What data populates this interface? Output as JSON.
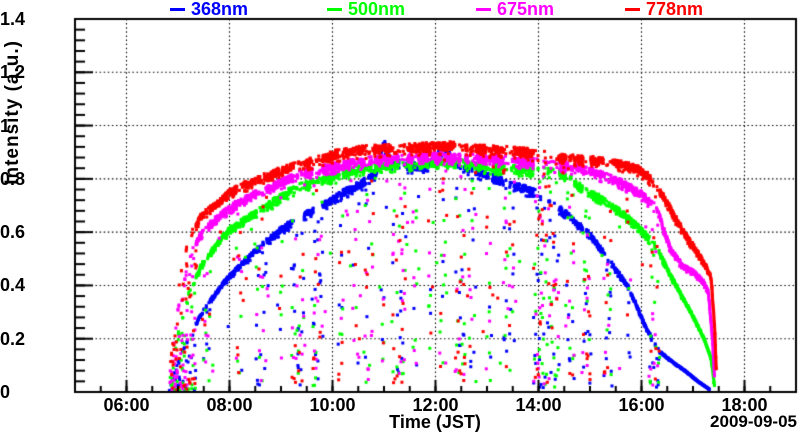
{
  "figure": {
    "background_color": "#ffffff",
    "axis_color": "#000000",
    "date_shown": "2009-09-05"
  },
  "chart_data": {
    "type": "scatter",
    "title": "",
    "xlabel": "Time (JST)",
    "ylabel": "Intensity (a.u.)",
    "date": "2009-09-05",
    "legend_position": "top",
    "grid": "dotted-at-major-ticks",
    "marker": "square",
    "marker_size_px": 3,
    "x_axis": {
      "unit": "hour-of-day JST",
      "range": [
        5,
        19
      ],
      "major_ticks": [
        {
          "hour": 6,
          "label": "06:00"
        },
        {
          "hour": 8,
          "label": "08:00"
        },
        {
          "hour": 10,
          "label": "10:00"
        },
        {
          "hour": 12,
          "label": "12:00"
        },
        {
          "hour": 14,
          "label": "14:00"
        },
        {
          "hour": 16,
          "label": "16:00"
        },
        {
          "hour": 18,
          "label": "18:00"
        }
      ],
      "minor_tick_step_hours": 0.5
    },
    "y_axis": {
      "range": [
        0,
        1.4
      ],
      "major_ticks": [
        {
          "value": 0.0,
          "label": "0"
        },
        {
          "value": 0.2,
          "label": "0.2"
        },
        {
          "value": 0.4,
          "label": "0.4"
        },
        {
          "value": 0.6,
          "label": "0.6"
        },
        {
          "value": 0.8,
          "label": "0.8"
        },
        {
          "value": 1.0,
          "label": "1"
        },
        {
          "value": 1.2,
          "label": "1.2"
        },
        {
          "value": 1.4,
          "label": "1.4"
        }
      ],
      "minor_tick_step": 0.04
    },
    "series": [
      {
        "name": "368nm",
        "color": "#0000ff",
        "start_hour": 6.85,
        "end_hour": 17.32,
        "envelope": [
          [
            6.85,
            0.03
          ],
          [
            7.0,
            0.12
          ],
          [
            7.2,
            0.2
          ],
          [
            7.4,
            0.28
          ],
          [
            7.6,
            0.34
          ],
          [
            7.9,
            0.42
          ],
          [
            8.2,
            0.48
          ],
          [
            8.6,
            0.555
          ],
          [
            9.0,
            0.62
          ],
          [
            9.4,
            0.67
          ],
          [
            9.8,
            0.71
          ],
          [
            10.2,
            0.76
          ],
          [
            10.6,
            0.8
          ],
          [
            10.85,
            0.84
          ],
          [
            11.0,
            0.95
          ],
          [
            11.15,
            0.88
          ],
          [
            11.5,
            0.86
          ],
          [
            11.8,
            0.865
          ],
          [
            12.05,
            0.9
          ],
          [
            12.15,
            0.94
          ],
          [
            12.35,
            0.88
          ],
          [
            12.7,
            0.85
          ],
          [
            13.1,
            0.82
          ],
          [
            13.5,
            0.79
          ],
          [
            13.9,
            0.765
          ],
          [
            14.2,
            0.73
          ],
          [
            14.6,
            0.67
          ],
          [
            15.0,
            0.6
          ],
          [
            15.35,
            0.51
          ],
          [
            15.75,
            0.4
          ],
          [
            16.1,
            0.24
          ],
          [
            16.35,
            0.155
          ],
          [
            16.6,
            0.115
          ],
          [
            16.85,
            0.08
          ],
          [
            17.1,
            0.04
          ],
          [
            17.32,
            0.01
          ]
        ]
      },
      {
        "name": "500nm",
        "color": "#00ff00",
        "start_hour": 6.85,
        "end_hour": 17.42,
        "envelope": [
          [
            6.85,
            0.05
          ],
          [
            7.0,
            0.22
          ],
          [
            7.2,
            0.37
          ],
          [
            7.45,
            0.48
          ],
          [
            7.7,
            0.55
          ],
          [
            8.0,
            0.62
          ],
          [
            8.4,
            0.67
          ],
          [
            8.8,
            0.72
          ],
          [
            9.2,
            0.77
          ],
          [
            9.6,
            0.8
          ],
          [
            10.0,
            0.82
          ],
          [
            10.5,
            0.85
          ],
          [
            11.0,
            0.865
          ],
          [
            11.6,
            0.87
          ],
          [
            12.2,
            0.88
          ],
          [
            12.8,
            0.865
          ],
          [
            13.3,
            0.855
          ],
          [
            13.8,
            0.85
          ],
          [
            14.2,
            0.845
          ],
          [
            14.5,
            0.83
          ],
          [
            14.9,
            0.77
          ],
          [
            15.3,
            0.73
          ],
          [
            15.7,
            0.67
          ],
          [
            16.0,
            0.62
          ],
          [
            16.3,
            0.55
          ],
          [
            16.55,
            0.45
          ],
          [
            16.8,
            0.36
          ],
          [
            17.0,
            0.29
          ],
          [
            17.2,
            0.21
          ],
          [
            17.35,
            0.13
          ],
          [
            17.42,
            0.02
          ]
        ]
      },
      {
        "name": "675nm",
        "color": "#ff00ff",
        "start_hour": 6.85,
        "end_hour": 17.42,
        "envelope": [
          [
            6.85,
            0.08
          ],
          [
            7.0,
            0.32
          ],
          [
            7.15,
            0.45
          ],
          [
            7.3,
            0.55
          ],
          [
            7.5,
            0.62
          ],
          [
            7.8,
            0.67
          ],
          [
            8.1,
            0.715
          ],
          [
            8.6,
            0.765
          ],
          [
            9.0,
            0.8
          ],
          [
            9.4,
            0.835
          ],
          [
            9.9,
            0.855
          ],
          [
            10.4,
            0.875
          ],
          [
            11.0,
            0.89
          ],
          [
            11.8,
            0.9
          ],
          [
            12.5,
            0.895
          ],
          [
            13.2,
            0.89
          ],
          [
            13.8,
            0.88
          ],
          [
            14.3,
            0.87
          ],
          [
            14.8,
            0.855
          ],
          [
            15.3,
            0.825
          ],
          [
            15.7,
            0.79
          ],
          [
            16.0,
            0.755
          ],
          [
            16.3,
            0.7
          ],
          [
            16.55,
            0.55
          ],
          [
            16.8,
            0.48
          ],
          [
            17.0,
            0.46
          ],
          [
            17.2,
            0.42
          ],
          [
            17.3,
            0.38
          ],
          [
            17.38,
            0.2
          ],
          [
            17.42,
            0.05
          ]
        ]
      },
      {
        "name": "778nm",
        "color": "#ff0000",
        "start_hour": 6.85,
        "end_hour": 17.45,
        "envelope": [
          [
            6.85,
            0.1
          ],
          [
            7.0,
            0.38
          ],
          [
            7.1,
            0.5
          ],
          [
            7.25,
            0.6
          ],
          [
            7.45,
            0.67
          ],
          [
            7.7,
            0.71
          ],
          [
            8.0,
            0.76
          ],
          [
            8.3,
            0.79
          ],
          [
            8.6,
            0.815
          ],
          [
            9.0,
            0.845
          ],
          [
            9.3,
            0.865
          ],
          [
            9.7,
            0.885
          ],
          [
            10.1,
            0.91
          ],
          [
            10.6,
            0.925
          ],
          [
            11.2,
            0.93
          ],
          [
            11.8,
            0.935
          ],
          [
            12.3,
            0.94
          ],
          [
            12.8,
            0.93
          ],
          [
            13.3,
            0.925
          ],
          [
            13.8,
            0.915
          ],
          [
            14.3,
            0.9
          ],
          [
            14.8,
            0.89
          ],
          [
            15.3,
            0.88
          ],
          [
            15.7,
            0.865
          ],
          [
            16.0,
            0.845
          ],
          [
            16.2,
            0.81
          ],
          [
            16.45,
            0.74
          ],
          [
            16.7,
            0.65
          ],
          [
            16.9,
            0.585
          ],
          [
            17.1,
            0.53
          ],
          [
            17.25,
            0.48
          ],
          [
            17.35,
            0.44
          ],
          [
            17.42,
            0.25
          ],
          [
            17.45,
            0.09
          ]
        ]
      }
    ],
    "cloud_dips": [
      {
        "center_hour": 7.1,
        "half_width_hour": 0.25,
        "density": 0.88,
        "min_frac": 0.02
      },
      {
        "center_hour": 7.55,
        "half_width_hour": 0.07,
        "density": 0.7,
        "min_frac": 0.04
      },
      {
        "center_hour": 8.2,
        "half_width_hour": 0.05,
        "density": 0.55,
        "min_frac": 0.08
      },
      {
        "center_hour": 8.62,
        "half_width_hour": 0.1,
        "density": 0.75,
        "min_frac": 0.03
      },
      {
        "center_hour": 9.0,
        "half_width_hour": 0.03,
        "density": 0.45,
        "min_frac": 0.15
      },
      {
        "center_hour": 9.33,
        "half_width_hour": 0.12,
        "density": 0.82,
        "min_frac": 0.03
      },
      {
        "center_hour": 9.7,
        "half_width_hour": 0.1,
        "density": 0.8,
        "min_frac": 0.03
      },
      {
        "center_hour": 10.15,
        "half_width_hour": 0.05,
        "density": 0.6,
        "min_frac": 0.05
      },
      {
        "center_hour": 10.45,
        "half_width_hour": 0.06,
        "density": 0.55,
        "min_frac": 0.08
      },
      {
        "center_hour": 10.72,
        "half_width_hour": 0.1,
        "density": 0.7,
        "min_frac": 0.04
      },
      {
        "center_hour": 11.0,
        "half_width_hour": 0.05,
        "density": 0.45,
        "min_frac": 0.1
      },
      {
        "center_hour": 11.3,
        "half_width_hour": 0.15,
        "density": 0.8,
        "min_frac": 0.03
      },
      {
        "center_hour": 11.62,
        "half_width_hour": 0.06,
        "density": 0.55,
        "min_frac": 0.08
      },
      {
        "center_hour": 11.9,
        "half_width_hour": 0.05,
        "density": 0.5,
        "min_frac": 0.1
      },
      {
        "center_hour": 12.15,
        "half_width_hour": 0.06,
        "density": 0.55,
        "min_frac": 0.06
      },
      {
        "center_hour": 12.48,
        "half_width_hour": 0.1,
        "density": 0.72,
        "min_frac": 0.03
      },
      {
        "center_hour": 12.7,
        "half_width_hour": 0.08,
        "density": 0.7,
        "min_frac": 0.04
      },
      {
        "center_hour": 13.05,
        "half_width_hour": 0.06,
        "density": 0.65,
        "min_frac": 0.05
      },
      {
        "center_hour": 13.42,
        "half_width_hour": 0.1,
        "density": 0.75,
        "min_frac": 0.03
      },
      {
        "center_hour": 14.15,
        "half_width_hour": 0.25,
        "density": 0.85,
        "min_frac": 0.02
      },
      {
        "center_hour": 14.62,
        "half_width_hour": 0.08,
        "density": 0.7,
        "min_frac": 0.04
      },
      {
        "center_hour": 14.93,
        "half_width_hour": 0.08,
        "density": 0.72,
        "min_frac": 0.04
      },
      {
        "center_hour": 15.35,
        "half_width_hour": 0.09,
        "density": 0.72,
        "min_frac": 0.04
      },
      {
        "center_hour": 15.75,
        "half_width_hour": 0.04,
        "density": 0.45,
        "min_frac": 0.12
      },
      {
        "center_hour": 16.25,
        "half_width_hour": 0.1,
        "density": 0.75,
        "min_frac": 0.03
      }
    ]
  }
}
